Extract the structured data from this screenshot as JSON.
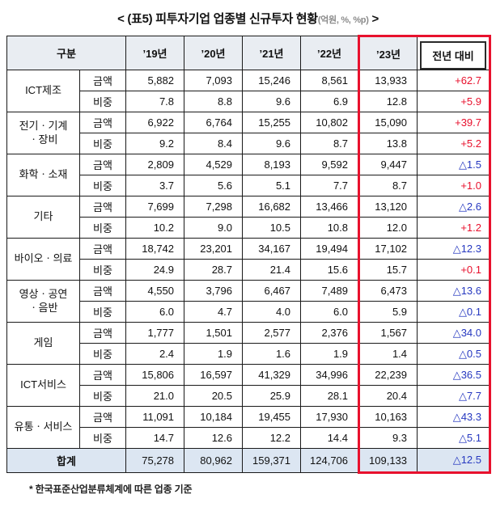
{
  "title": {
    "prefix": "< (표5) 피투자기업 업종별 신규투자 현황",
    "unit": "(억원, %, %p)",
    "suffix": " >"
  },
  "table": {
    "col_headers": [
      "구분",
      "’19년",
      "’20년",
      "’21년",
      "’22년",
      "’23년",
      "전년 대비"
    ],
    "groups": [
      {
        "name": "ICT제조",
        "rows": [
          {
            "label": "금액",
            "values": [
              "5,882",
              "7,093",
              "15,246",
              "8,561",
              "13,933"
            ],
            "yoy": "+62.7",
            "yoy_color": "red"
          },
          {
            "label": "비중",
            "values": [
              "7.8",
              "8.8",
              "9.6",
              "6.9",
              "12.8"
            ],
            "yoy": "+5.9",
            "yoy_color": "red"
          }
        ]
      },
      {
        "name": "전기ㆍ기계\nㆍ장비",
        "rows": [
          {
            "label": "금액",
            "values": [
              "6,922",
              "6,764",
              "15,255",
              "10,802",
              "15,090"
            ],
            "yoy": "+39.7",
            "yoy_color": "red"
          },
          {
            "label": "비중",
            "values": [
              "9.2",
              "8.4",
              "9.6",
              "8.7",
              "13.8"
            ],
            "yoy": "+5.2",
            "yoy_color": "red"
          }
        ]
      },
      {
        "name": "화학ㆍ소재",
        "rows": [
          {
            "label": "금액",
            "values": [
              "2,809",
              "4,529",
              "8,193",
              "9,592",
              "9,447"
            ],
            "yoy": "△1.5",
            "yoy_color": "blue"
          },
          {
            "label": "비중",
            "values": [
              "3.7",
              "5.6",
              "5.1",
              "7.7",
              "8.7"
            ],
            "yoy": "+1.0",
            "yoy_color": "red"
          }
        ]
      },
      {
        "name": "기타",
        "rows": [
          {
            "label": "금액",
            "values": [
              "7,699",
              "7,298",
              "16,682",
              "13,466",
              "13,120"
            ],
            "yoy": "△2.6",
            "yoy_color": "blue"
          },
          {
            "label": "비중",
            "values": [
              "10.2",
              "9.0",
              "10.5",
              "10.8",
              "12.0"
            ],
            "yoy": "+1.2",
            "yoy_color": "red"
          }
        ]
      },
      {
        "name": "바이오ㆍ의료",
        "rows": [
          {
            "label": "금액",
            "values": [
              "18,742",
              "23,201",
              "34,167",
              "19,494",
              "17,102"
            ],
            "yoy": "△12.3",
            "yoy_color": "blue"
          },
          {
            "label": "비중",
            "values": [
              "24.9",
              "28.7",
              "21.4",
              "15.6",
              "15.7"
            ],
            "yoy": "+0.1",
            "yoy_color": "red"
          }
        ]
      },
      {
        "name": "영상ㆍ공연\nㆍ음반",
        "rows": [
          {
            "label": "금액",
            "values": [
              "4,550",
              "3,796",
              "6,467",
              "7,489",
              "6,473"
            ],
            "yoy": "△13.6",
            "yoy_color": "blue"
          },
          {
            "label": "비중",
            "values": [
              "6.0",
              "4.7",
              "4.0",
              "6.0",
              "5.9"
            ],
            "yoy": "△0.1",
            "yoy_color": "blue"
          }
        ]
      },
      {
        "name": "게임",
        "rows": [
          {
            "label": "금액",
            "values": [
              "1,777",
              "1,501",
              "2,577",
              "2,376",
              "1,567"
            ],
            "yoy": "△34.0",
            "yoy_color": "blue"
          },
          {
            "label": "비중",
            "values": [
              "2.4",
              "1.9",
              "1.6",
              "1.9",
              "1.4"
            ],
            "yoy": "△0.5",
            "yoy_color": "blue"
          }
        ]
      },
      {
        "name": "ICT서비스",
        "rows": [
          {
            "label": "금액",
            "values": [
              "15,806",
              "16,597",
              "41,329",
              "34,996",
              "22,239"
            ],
            "yoy": "△36.5",
            "yoy_color": "blue"
          },
          {
            "label": "비중",
            "values": [
              "21.0",
              "20.5",
              "25.9",
              "28.1",
              "20.4"
            ],
            "yoy": "△7.7",
            "yoy_color": "blue"
          }
        ]
      },
      {
        "name": "유통ㆍ서비스",
        "rows": [
          {
            "label": "금액",
            "values": [
              "11,091",
              "10,184",
              "19,455",
              "17,930",
              "10,163"
            ],
            "yoy": "△43.3",
            "yoy_color": "blue"
          },
          {
            "label": "비중",
            "values": [
              "14.7",
              "12.6",
              "12.2",
              "14.4",
              "9.3"
            ],
            "yoy": "△5.1",
            "yoy_color": "blue"
          }
        ]
      }
    ],
    "total": {
      "label": "합계",
      "values": [
        "75,278",
        "80,962",
        "159,371",
        "124,706",
        "109,133"
      ],
      "yoy": "△12.5",
      "yoy_color": "blue"
    }
  },
  "footnote": "* 한국표준산업분류체계에 따른 업종 기준",
  "colors": {
    "red": "#e8112d",
    "blue": "#2638c0",
    "header_bg": "#e9edf2",
    "total_bg": "#dce6f2",
    "highlight_border": "#e8112d"
  }
}
